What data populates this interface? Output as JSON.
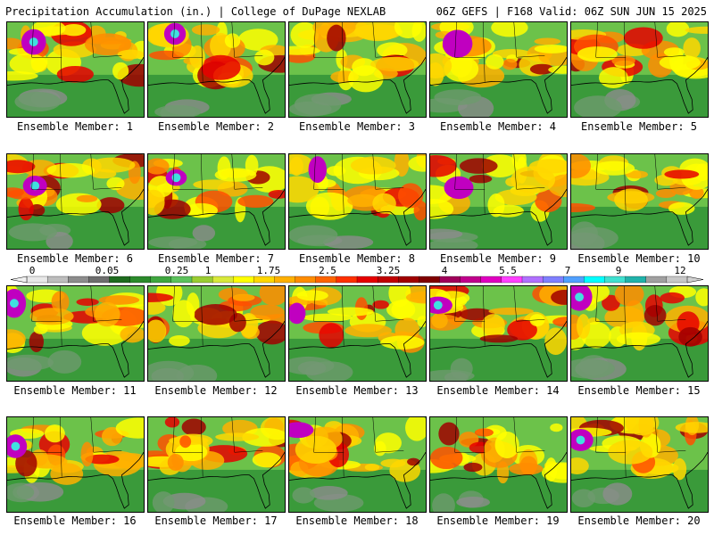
{
  "header": {
    "left": "Precipitation Accumulation (in.) | College of DuPage NEXLAB",
    "right": "06Z GEFS | F168 Valid: 06Z SUN JUN 15 2025"
  },
  "panels": [
    {
      "label": "Ensemble Member: 1"
    },
    {
      "label": "Ensemble Member: 2"
    },
    {
      "label": "Ensemble Member: 3"
    },
    {
      "label": "Ensemble Member: 4"
    },
    {
      "label": "Ensemble Member: 5"
    },
    {
      "label": "Ensemble Member: 6"
    },
    {
      "label": "Ensemble Member: 7"
    },
    {
      "label": "Ensemble Member: 8"
    },
    {
      "label": "Ensemble Member: 9"
    },
    {
      "label": "Ensemble Member: 10"
    },
    {
      "label": "Ensemble Member: 11"
    },
    {
      "label": "Ensemble Member: 12"
    },
    {
      "label": "Ensemble Member: 13"
    },
    {
      "label": "Ensemble Member: 14"
    },
    {
      "label": "Ensemble Member: 15"
    },
    {
      "label": "Ensemble Member: 16"
    },
    {
      "label": "Ensemble Member: 17"
    },
    {
      "label": "Ensemble Member: 18"
    },
    {
      "label": "Ensemble Member: 19"
    },
    {
      "label": "Ensemble Member: 20"
    }
  ],
  "colorbar": {
    "labels": [
      "0",
      "0.05",
      "0.25",
      "1",
      "1.75",
      "2.5",
      "3.25",
      "4",
      "5.5",
      "7",
      "9",
      "12"
    ],
    "colors": [
      "#e8e8e8",
      "#bdbdbd",
      "#8c8c8c",
      "#6e6e6e",
      "#1e6b1e",
      "#2b8a2b",
      "#3fa63f",
      "#5cc25c",
      "#9acd32",
      "#d8e93a",
      "#ffff00",
      "#ffd700",
      "#ffb000",
      "#ff8c00",
      "#ff6400",
      "#ff3000",
      "#e60000",
      "#c00000",
      "#a00000",
      "#800000",
      "#a0005a",
      "#c0008c",
      "#e000c0",
      "#ff40ff",
      "#b070ff",
      "#7f7fff",
      "#50a0ff",
      "#00ffff",
      "#40e0d0",
      "#20b2aa",
      "#a0a0a0",
      "#c8c8c8"
    ]
  }
}
